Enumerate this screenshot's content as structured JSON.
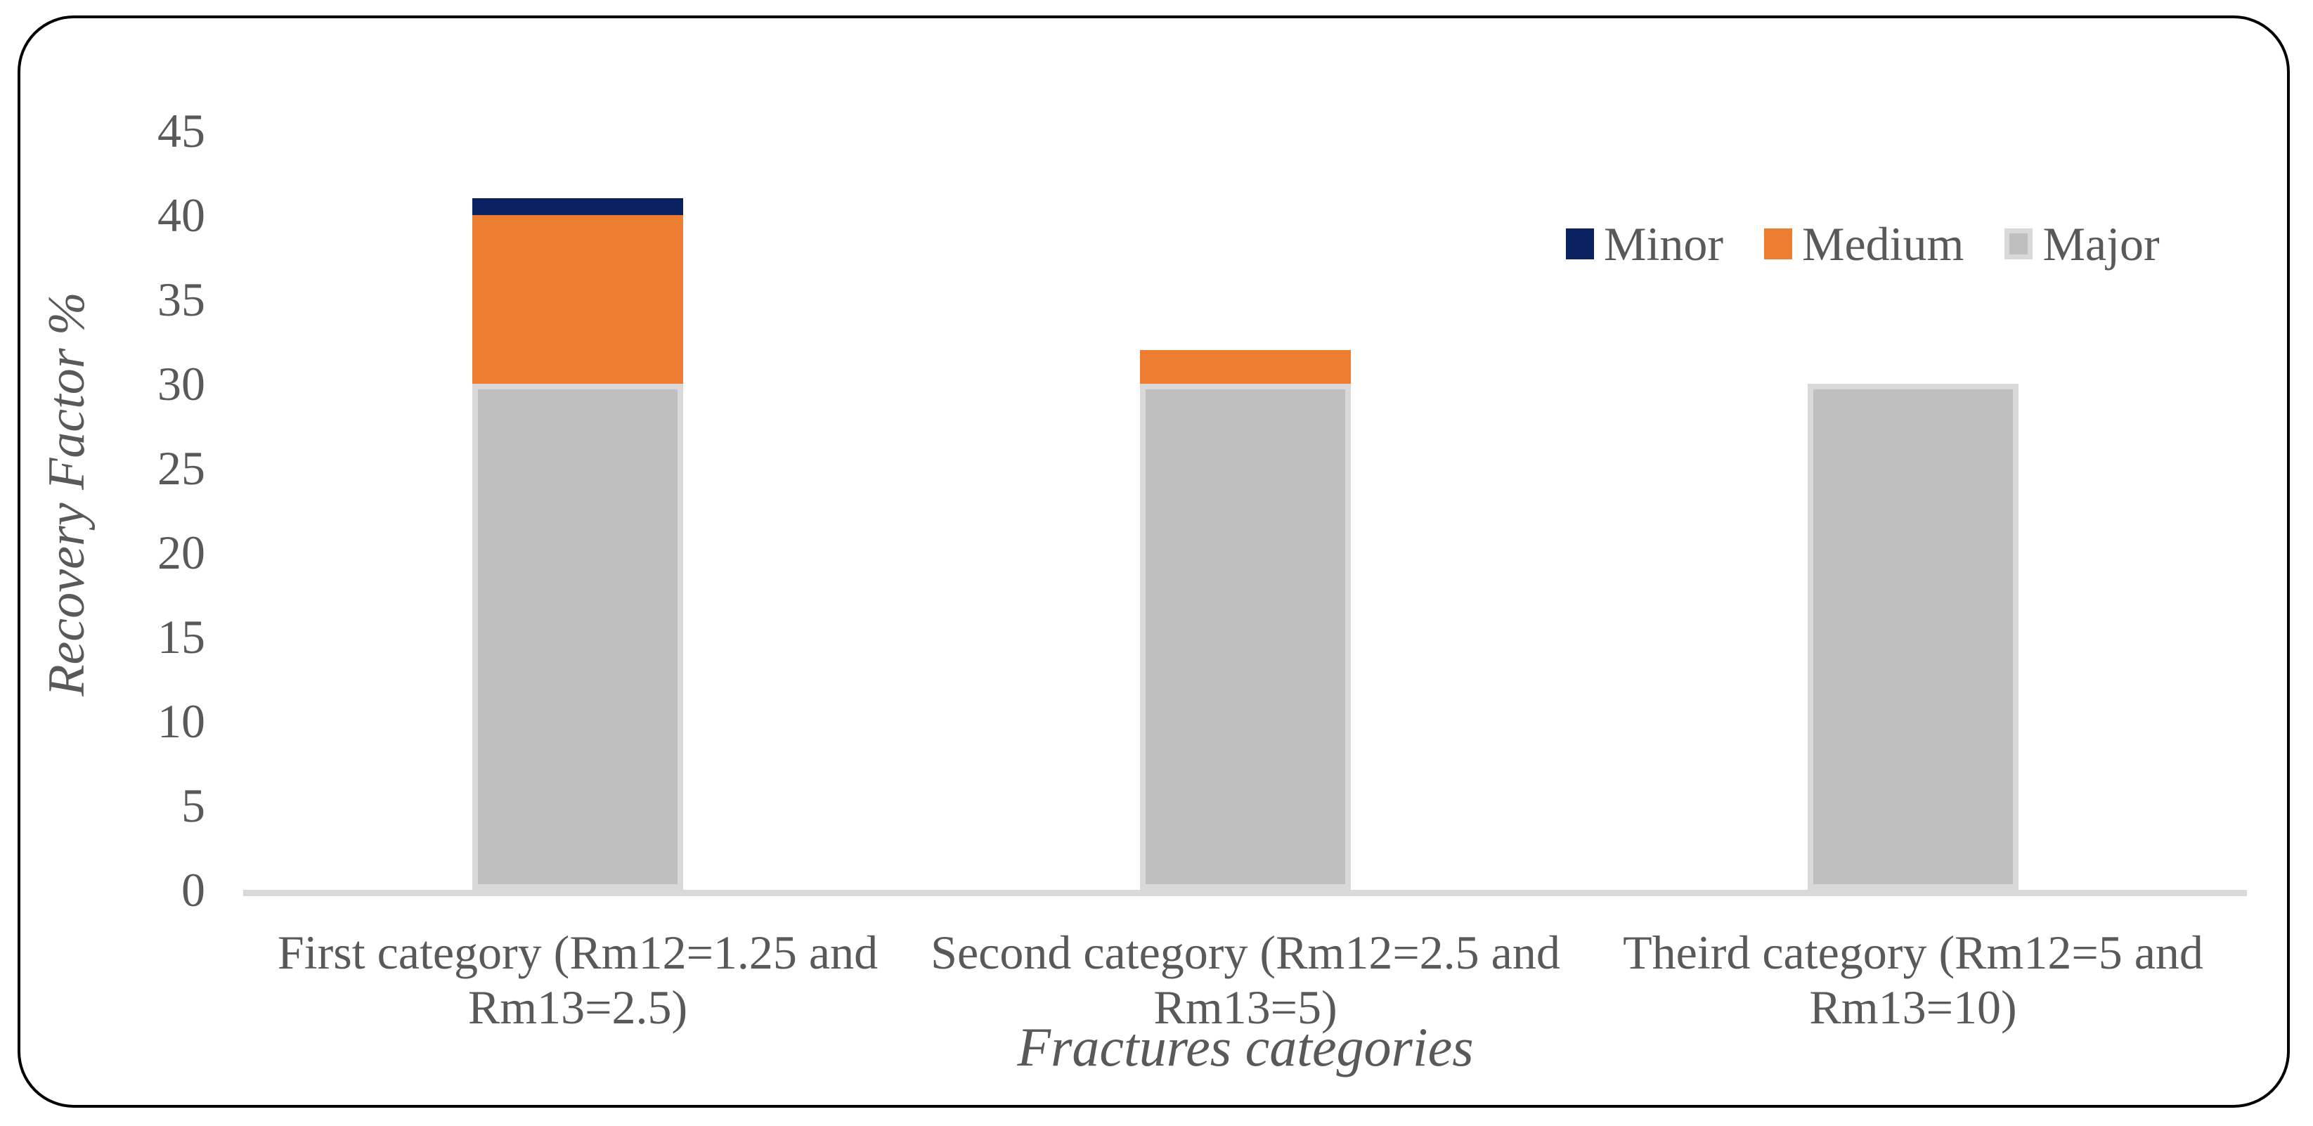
{
  "figure": {
    "background_color": "#ffffff",
    "frame_border_color": "#000000",
    "text_color": "#595959",
    "axis_line_color": "#d9d9d9"
  },
  "chart_data": {
    "type": "bar",
    "stacked": true,
    "title": "",
    "xlabel": "Fractures categories",
    "ylabel": "Recovery Factor %",
    "categories": [
      "First category (Rm12=1.25 and Rm13=2.5)",
      "Second category (Rm12=2.5 and Rm13=5)",
      "Theird category (Rm12=5 and Rm13=10)"
    ],
    "category_lines": [
      [
        "First category (Rm12=1.25 and",
        "Rm13=2.5)"
      ],
      [
        "Second category (Rm12=2.5 and",
        "Rm13=5)"
      ],
      [
        "Theird category (Rm12=5 and",
        "Rm13=10)"
      ]
    ],
    "series": [
      {
        "name": "Minor",
        "color": "#0b2260",
        "values": [
          1,
          0,
          0
        ]
      },
      {
        "name": "Medium",
        "color": "#ed7d31",
        "values": [
          10,
          2,
          0
        ]
      },
      {
        "name": "Major",
        "color": "#bfbfbf",
        "border_color": "#d9d9d9",
        "values": [
          30,
          30,
          30
        ]
      }
    ],
    "stack_totals": [
      41,
      32,
      30
    ],
    "ylim": [
      0,
      45
    ],
    "yticks": [
      0,
      5,
      10,
      15,
      20,
      25,
      30,
      35,
      40,
      45
    ],
    "grid": false,
    "legend_position": "top-right",
    "legend_order": [
      "Minor",
      "Medium",
      "Major"
    ]
  }
}
